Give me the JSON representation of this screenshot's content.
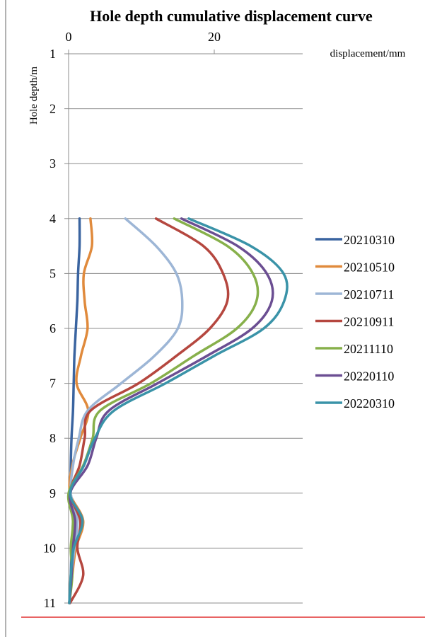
{
  "chart_data": {
    "type": "line",
    "title": "Hole depth cumulative displacement curve",
    "xlabel": "displacement/mm",
    "ylabel": "Hole depth/m",
    "x_ticks": [
      "0",
      "20"
    ],
    "y_ticks": [
      "1",
      "2",
      "3",
      "4",
      "5",
      "6",
      "7",
      "8",
      "9",
      "10",
      "11"
    ],
    "xlim": [
      0,
      32
    ],
    "ylim": [
      1,
      11
    ],
    "y_reversed": true,
    "x_axis_position": "top",
    "grid": "horizontal",
    "legend_position": "right",
    "depths": [
      4,
      4.5,
      5,
      5.5,
      6,
      6.5,
      7,
      7.5,
      8,
      8.5,
      9,
      9.5,
      10,
      10.5,
      11
    ],
    "series": [
      {
        "name": "20210310",
        "color": "#3a64a0",
        "x": [
          1.5,
          1.5,
          1.3,
          1.2,
          1.0,
          0.8,
          0.7,
          0.6,
          0.4,
          0.3,
          0.3,
          0.6,
          0.4,
          0.3,
          0.1
        ]
      },
      {
        "name": "20210510",
        "color": "#e08a3c",
        "x": [
          3.0,
          3.2,
          2.1,
          2.2,
          2.6,
          1.7,
          1.1,
          2.7,
          1.6,
          0.5,
          0.2,
          2.0,
          1.0,
          0.5,
          0.1
        ]
      },
      {
        "name": "20210711",
        "color": "#9db6d6",
        "x": [
          7.8,
          12.0,
          14.8,
          15.6,
          15.0,
          11.8,
          7.2,
          2.6,
          1.4,
          0.6,
          0.3,
          1.2,
          0.8,
          0.4,
          0.1
        ]
      },
      {
        "name": "20210911",
        "color": "#b5473f",
        "x": [
          12.0,
          18.5,
          21.2,
          21.8,
          19.4,
          14.8,
          9.6,
          3.0,
          2.2,
          1.5,
          0.2,
          1.6,
          1.2,
          2.0,
          0.2
        ]
      },
      {
        "name": "20211110",
        "color": "#87b04b",
        "x": [
          14.5,
          21.8,
          25.3,
          25.8,
          23.1,
          17.2,
          11.3,
          4.3,
          3.3,
          2.0,
          0.0,
          0.6,
          0.3,
          0.5,
          0.1
        ]
      },
      {
        "name": "20220110",
        "color": "#6b4e92",
        "x": [
          15.5,
          23.2,
          27.2,
          27.9,
          25.2,
          19.0,
          12.2,
          5.5,
          3.8,
          2.6,
          0.2,
          0.9,
          0.6,
          0.4,
          0.1
        ]
      },
      {
        "name": "20220310",
        "color": "#3a93a8",
        "x": [
          16.5,
          25.0,
          29.5,
          29.6,
          26.8,
          20.0,
          13.3,
          6.2,
          3.6,
          2.1,
          0.2,
          1.9,
          0.7,
          0.3,
          0.1
        ]
      }
    ]
  }
}
